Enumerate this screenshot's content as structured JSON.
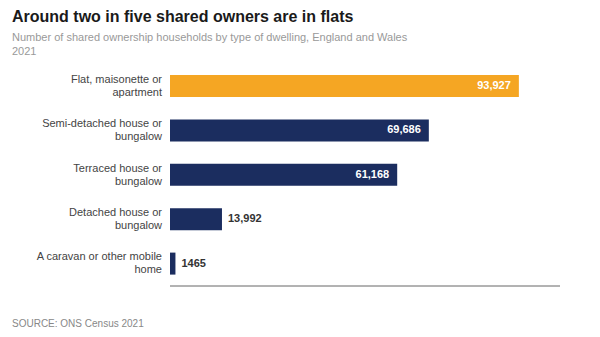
{
  "chart_data": {
    "type": "bar",
    "orientation": "horizontal",
    "title": "Around two in five shared owners are in flats",
    "subtitle": "Number of shared ownership households by type of dwelling, England and Wales\n2021",
    "annotations": [
      "SOURCE: ONS Census 2021"
    ],
    "categories": [
      "Flat, maisonette or\napartment",
      "Semi-detached house or\nbungalow",
      "Terraced house or\nbungalow",
      "Detached house or\nbungalow",
      "A caravan or other mobile\nhome"
    ],
    "values": [
      93927,
      69686,
      61168,
      13992,
      1465
    ],
    "value_labels": [
      "93,927",
      "69,686",
      "61,168",
      "13,992",
      "1465"
    ],
    "data_labels": true,
    "colors": [
      "#f5a623",
      "#1b2d5f",
      "#1b2d5f",
      "#1b2d5f",
      "#1b2d5f"
    ],
    "xlim": [
      0,
      105000
    ],
    "tick_labels": "y",
    "grid": false
  }
}
